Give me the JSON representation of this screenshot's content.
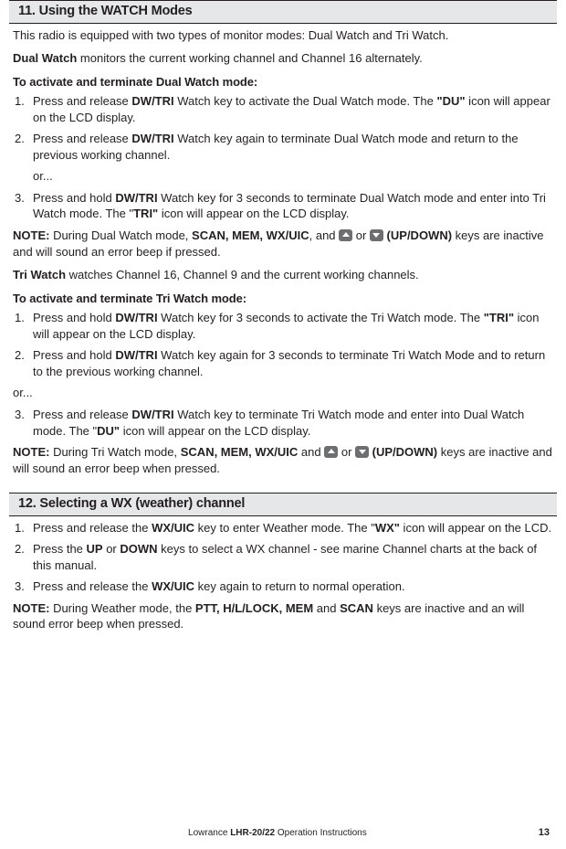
{
  "s11": {
    "header": "11. Using the WATCH Modes",
    "intro": "This radio is equipped with two types of monitor modes: Dual Watch and Tri Watch.",
    "dual_lead_b": "Dual Watch",
    "dual_lead_r": " monitors the current working channel and Channel 16 alternately.",
    "dual_sub": "To activate and terminate Dual Watch mode:",
    "dual_steps": {
      "s1a": "Press and release ",
      "s1b": "DW/TRI",
      "s1c": " Watch key to activate the Dual Watch mode. The ",
      "s1d": "\"DU\"",
      "s1e": " icon will appear on the LCD display.",
      "s2a": "Press and release ",
      "s2b": "DW/TRI",
      "s2c": " Watch key again to terminate Dual Watch mode and return to the previous working channel.",
      "or": "or...",
      "s3a": "Press and hold ",
      "s3b": "DW/TRI",
      "s3c": " Watch key for 3 seconds to terminate Dual Watch mode and enter into Tri Watch mode. The \"",
      "s3d": "TRI\"",
      "s3e": " icon will appear on the LCD display."
    },
    "note1a": "NOTE:",
    "note1b": " During Dual Watch mode, ",
    "note1c": "SCAN, MEM, WX/UIC",
    "note1d": ", and ",
    "note1e": " or ",
    "note1f": " (UP/DOWN)",
    "note1g": " keys are inactive and will sound an error beep if pressed.",
    "tri_lead_b": "Tri Watch",
    "tri_lead_r": " watches Channel 16, Channel 9 and the current working channels.",
    "tri_sub": "To activate and terminate Tri Watch mode:",
    "tri_steps": {
      "s1a": "Press and hold ",
      "s1b": "DW/TRI",
      "s1c": " Watch key for 3 seconds to activate the Tri Watch mode. The ",
      "s1d": "\"TRI\"",
      "s1e": " icon will appear on the LCD display.",
      "s2a": "Press and hold ",
      "s2b": "DW/TRI",
      "s2c": " Watch key again for 3 seconds to terminate Tri Watch Mode and to return to the previous working channel.",
      "or": "or...",
      "s3a": "Press and release ",
      "s3b": "DW/TRI",
      "s3c": " Watch key to terminate Tri Watch mode and enter into Dual Watch mode. The \"",
      "s3d": "DU\"",
      "s3e": " icon will appear on the LCD display."
    },
    "note2a": "NOTE:",
    "note2b": "  During Tri Watch mode, ",
    "note2c": "SCAN, MEM, WX/UIC",
    "note2d": " and ",
    "note2e": " or ",
    "note2f": " (UP/DOWN)",
    "note2g": " keys are inactive and will sound an error beep when pressed."
  },
  "s12": {
    "header": "12. Selecting a WX (weather) channel",
    "steps": {
      "s1a": "Press and release the ",
      "s1b": "WX/UIC",
      "s1c": " key to enter Weather mode. The \"",
      "s1d": "WX\"",
      "s1e": " icon will appear on the LCD.",
      "s2a": "Press the ",
      "s2b": "UP",
      "s2c": " or ",
      "s2d": "DOWN",
      "s2e": " keys to select a WX channel - see marine Channel charts at the back of this manual.",
      "s3a": "Press and release the ",
      "s3b": "WX/UIC",
      "s3c": " key again to return to normal operation."
    },
    "note_a": "NOTE:",
    "note_b": " During Weather mode, the ",
    "note_c": "PTT, H/L/LOCK, MEM",
    "note_d": " and ",
    "note_e": "SCAN",
    "note_f": " keys are inactive and an will sound error beep when pressed."
  },
  "footer": {
    "product_a": "Lowrance ",
    "product_b": "LHR-20/22 ",
    "product_c": " Operation Instructions",
    "page": "13"
  }
}
